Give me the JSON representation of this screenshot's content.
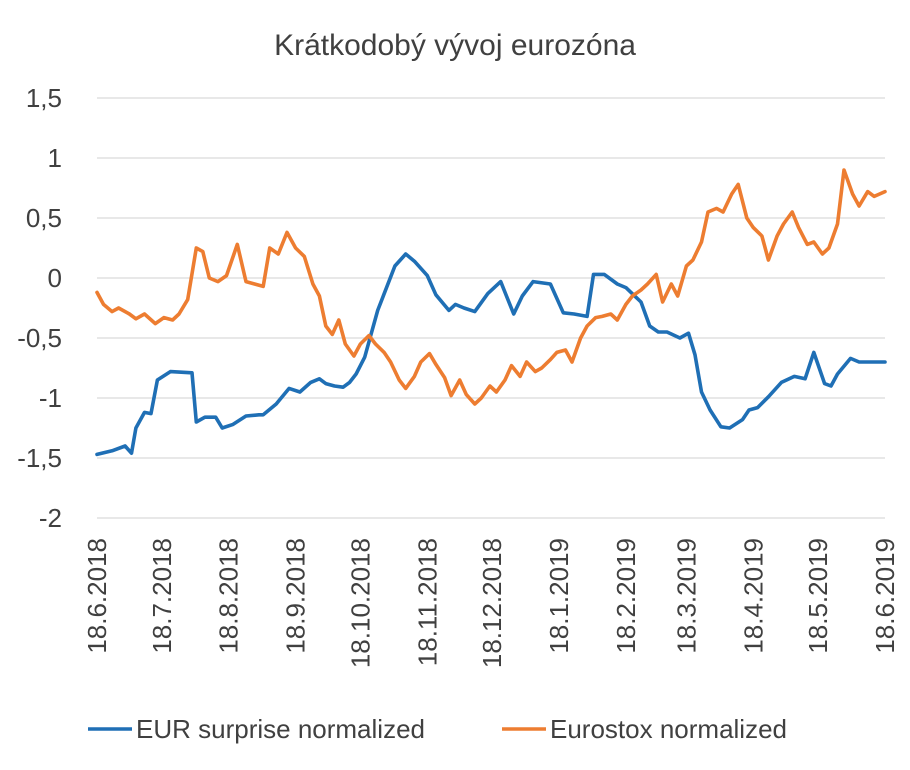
{
  "chart_data": {
    "type": "line",
    "title": "Krátkodobý vývoj eurozóna",
    "xlabel": "",
    "ylabel": "",
    "ylim": [
      -2,
      1.5
    ],
    "yticks": [
      1.5,
      1,
      0.5,
      0,
      -0.5,
      -1,
      -1.5,
      -2
    ],
    "ytick_labels": [
      "1,5",
      "1",
      "0,5",
      "0",
      "-0,5",
      "-1",
      "-1,5",
      "-2"
    ],
    "xlim": [
      "2018-06-18",
      "2019-06-18"
    ],
    "xticks": [
      "2018-06-18",
      "2018-07-18",
      "2018-08-18",
      "2018-09-18",
      "2018-10-18",
      "2018-11-18",
      "2018-12-18",
      "2019-01-18",
      "2019-02-18",
      "2019-03-18",
      "2019-04-18",
      "2019-05-18",
      "2019-06-18"
    ],
    "xtick_labels": [
      "18.6.2018",
      "18.7.2018",
      "18.8.2018",
      "18.9.2018",
      "18.10.2018",
      "18.11.2018",
      "18.12.2018",
      "18.1.2019",
      "18.2.2019",
      "18.3.2019",
      "18.4.2019",
      "18.5.2019",
      "18.6.2019"
    ],
    "grid": true,
    "legend": "bottom",
    "series": [
      {
        "name": "EUR surprise normalized",
        "color": "#1f6fb5",
        "x": [
          "2018-06-18",
          "2018-06-25",
          "2018-07-01",
          "2018-07-04",
          "2018-07-06",
          "2018-07-10",
          "2018-07-13",
          "2018-07-16",
          "2018-07-22",
          "2018-08-01",
          "2018-08-03",
          "2018-08-07",
          "2018-08-12",
          "2018-08-15",
          "2018-08-20",
          "2018-08-26",
          "2018-09-01",
          "2018-09-03",
          "2018-09-09",
          "2018-09-15",
          "2018-09-20",
          "2018-09-25",
          "2018-09-29",
          "2018-10-02",
          "2018-10-06",
          "2018-10-10",
          "2018-10-13",
          "2018-10-16",
          "2018-10-20",
          "2018-10-26",
          "2018-11-03",
          "2018-11-08",
          "2018-11-12",
          "2018-11-18",
          "2018-11-22",
          "2018-11-28",
          "2018-12-01",
          "2018-12-05",
          "2018-12-10",
          "2018-12-16",
          "2018-12-22",
          "2018-12-28",
          "2019-01-01",
          "2019-01-06",
          "2019-01-14",
          "2019-01-20",
          "2019-01-25",
          "2019-01-31",
          "2019-02-03",
          "2019-02-08",
          "2019-02-14",
          "2019-02-18",
          "2019-02-25",
          "2019-03-01",
          "2019-03-05",
          "2019-03-09",
          "2019-03-15",
          "2019-03-19",
          "2019-03-22",
          "2019-03-25",
          "2019-03-29",
          "2019-04-03",
          "2019-04-07",
          "2019-04-13",
          "2019-04-16",
          "2019-04-20",
          "2019-04-25",
          "2019-05-01",
          "2019-05-07",
          "2019-05-12",
          "2019-05-16",
          "2019-05-21",
          "2019-05-24",
          "2019-05-27",
          "2019-06-02",
          "2019-06-06",
          "2019-06-18"
        ],
        "y": [
          -1.47,
          -1.44,
          -1.4,
          -1.46,
          -1.25,
          -1.12,
          -1.13,
          -0.85,
          -0.78,
          -0.79,
          -1.2,
          -1.16,
          -1.16,
          -1.25,
          -1.22,
          -1.15,
          -1.14,
          -1.14,
          -1.05,
          -0.92,
          -0.95,
          -0.87,
          -0.84,
          -0.88,
          -0.9,
          -0.91,
          -0.87,
          -0.8,
          -0.66,
          -0.27,
          0.1,
          0.2,
          0.14,
          0.02,
          -0.14,
          -0.27,
          -0.22,
          -0.25,
          -0.28,
          -0.13,
          -0.03,
          -0.3,
          -0.15,
          -0.03,
          -0.05,
          -0.29,
          -0.3,
          -0.32,
          0.03,
          0.03,
          -0.05,
          -0.08,
          -0.2,
          -0.4,
          -0.45,
          -0.45,
          -0.5,
          -0.46,
          -0.64,
          -0.95,
          -1.1,
          -1.24,
          -1.25,
          -1.18,
          -1.1,
          -1.08,
          -0.99,
          -0.87,
          -0.82,
          -0.84,
          -0.62,
          -0.88,
          -0.9,
          -0.8,
          -0.67,
          -0.7,
          -0.7
        ]
      },
      {
        "name": "Eurostox normalized",
        "color": "#ed7d31",
        "x": [
          "2018-06-18",
          "2018-06-21",
          "2018-06-25",
          "2018-06-28",
          "2018-07-03",
          "2018-07-06",
          "2018-07-10",
          "2018-07-15",
          "2018-07-19",
          "2018-07-23",
          "2018-07-26",
          "2018-07-30",
          "2018-08-03",
          "2018-08-06",
          "2018-08-09",
          "2018-08-13",
          "2018-08-17",
          "2018-08-22",
          "2018-08-26",
          "2018-08-30",
          "2018-09-03",
          "2018-09-06",
          "2018-09-10",
          "2018-09-14",
          "2018-09-18",
          "2018-09-22",
          "2018-09-26",
          "2018-09-29",
          "2018-10-02",
          "2018-10-05",
          "2018-10-08",
          "2018-10-11",
          "2018-10-15",
          "2018-10-18",
          "2018-10-22",
          "2018-10-25",
          "2018-10-29",
          "2018-11-01",
          "2018-11-05",
          "2018-11-08",
          "2018-11-12",
          "2018-11-15",
          "2018-11-19",
          "2018-11-22",
          "2018-11-26",
          "2018-11-29",
          "2018-12-03",
          "2018-12-06",
          "2018-12-10",
          "2018-12-13",
          "2018-12-17",
          "2018-12-20",
          "2018-12-24",
          "2018-12-27",
          "2018-12-31",
          "2019-01-03",
          "2019-01-07",
          "2019-01-10",
          "2019-01-14",
          "2019-01-17",
          "2019-01-21",
          "2019-01-24",
          "2019-01-28",
          "2019-01-31",
          "2019-02-04",
          "2019-02-07",
          "2019-02-11",
          "2019-02-14",
          "2019-02-18",
          "2019-02-21",
          "2019-02-25",
          "2019-02-28",
          "2019-03-04",
          "2019-03-07",
          "2019-03-11",
          "2019-03-14",
          "2019-03-18",
          "2019-03-21",
          "2019-03-25",
          "2019-03-28",
          "2019-04-01",
          "2019-04-04",
          "2019-04-08",
          "2019-04-11",
          "2019-04-15",
          "2019-04-18",
          "2019-04-22",
          "2019-04-25",
          "2019-04-29",
          "2019-05-02",
          "2019-05-06",
          "2019-05-09",
          "2019-05-13",
          "2019-05-16",
          "2019-05-20",
          "2019-05-23",
          "2019-05-27",
          "2019-05-30",
          "2019-06-03",
          "2019-06-06",
          "2019-06-10",
          "2019-06-13",
          "2019-06-18"
        ],
        "y": [
          -0.12,
          -0.22,
          -0.28,
          -0.25,
          -0.3,
          -0.34,
          -0.3,
          -0.38,
          -0.33,
          -0.35,
          -0.3,
          -0.18,
          0.25,
          0.22,
          0.0,
          -0.03,
          0.02,
          0.28,
          -0.03,
          -0.05,
          -0.07,
          0.25,
          0.2,
          0.38,
          0.25,
          0.18,
          -0.05,
          -0.15,
          -0.4,
          -0.47,
          -0.35,
          -0.55,
          -0.65,
          -0.55,
          -0.48,
          -0.55,
          -0.62,
          -0.7,
          -0.85,
          -0.92,
          -0.82,
          -0.7,
          -0.63,
          -0.72,
          -0.83,
          -0.98,
          -0.85,
          -0.97,
          -1.05,
          -1.0,
          -0.9,
          -0.95,
          -0.85,
          -0.73,
          -0.82,
          -0.7,
          -0.78,
          -0.75,
          -0.68,
          -0.62,
          -0.6,
          -0.7,
          -0.5,
          -0.4,
          -0.33,
          -0.32,
          -0.3,
          -0.35,
          -0.22,
          -0.15,
          -0.1,
          -0.05,
          0.03,
          -0.2,
          -0.05,
          -0.15,
          0.1,
          0.15,
          0.3,
          0.55,
          0.58,
          0.55,
          0.7,
          0.78,
          0.5,
          0.42,
          0.35,
          0.15,
          0.35,
          0.45,
          0.55,
          0.42,
          0.28,
          0.3,
          0.2,
          0.25,
          0.45,
          0.9,
          0.7,
          0.6,
          0.72,
          0.68,
          0.72
        ]
      }
    ]
  }
}
